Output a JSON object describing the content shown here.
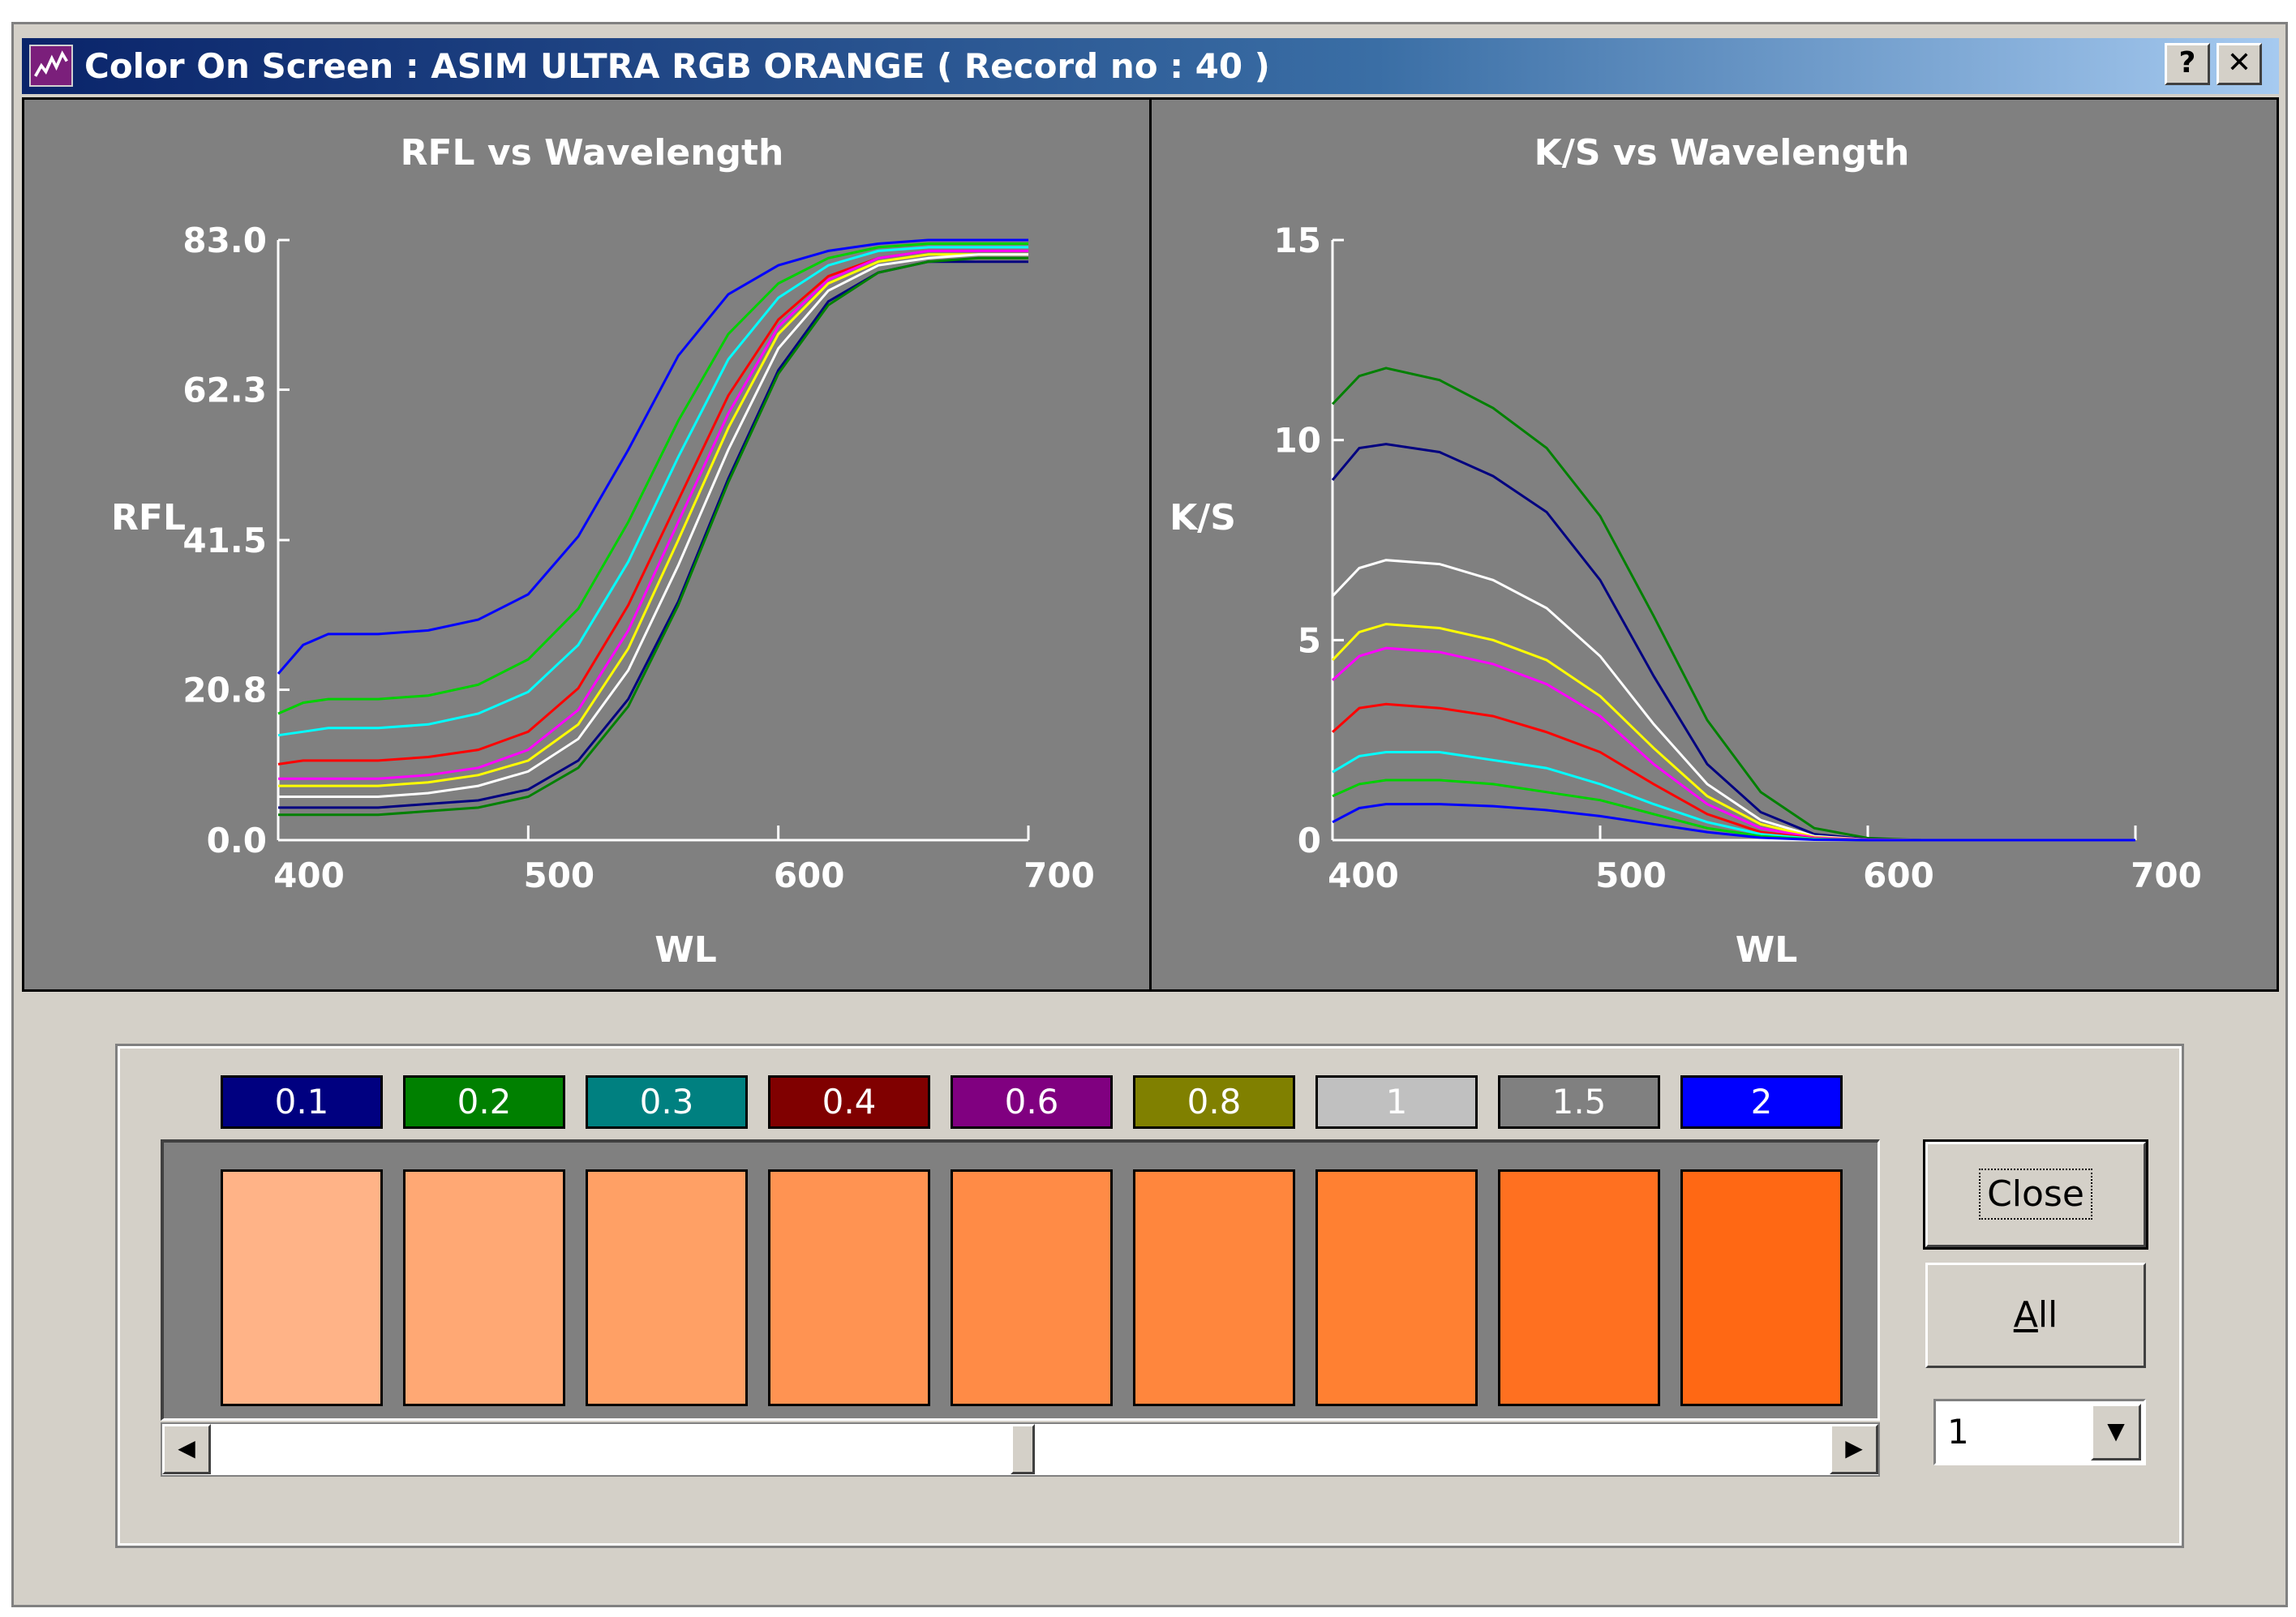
{
  "window": {
    "title": "Color On Screen : ASIM ULTRA RGB ORANGE ( Record no : 40 )",
    "help_label": "?",
    "close_label": "✕"
  },
  "colors": {
    "panel_bg": "#808080",
    "window_bg": "#d4d0c8",
    "axis": "#ffffff"
  },
  "chart_data": [
    {
      "type": "line",
      "title": "RFL vs Wavelength",
      "xlabel": "WL",
      "ylabel": "RFL",
      "xlim": [
        400,
        700
      ],
      "ylim": [
        0,
        83
      ],
      "x_ticks": [
        "400",
        "500",
        "600",
        "700"
      ],
      "y_ticks": [
        "0.0",
        "20.8",
        "41.5",
        "62.3",
        "83.0"
      ],
      "x": [
        400,
        410,
        420,
        440,
        460,
        480,
        500,
        520,
        540,
        560,
        580,
        600,
        620,
        640,
        660,
        680,
        700
      ],
      "series": [
        {
          "color": "#0000ff",
          "values": [
            23,
            27,
            28.5,
            28.5,
            29,
            30.5,
            34,
            42,
            54,
            67,
            75.5,
            79.5,
            81.5,
            82.5,
            83,
            83,
            83
          ]
        },
        {
          "color": "#00d000",
          "values": [
            17.5,
            19,
            19.5,
            19.5,
            20,
            21.5,
            25,
            32,
            44,
            58,
            70,
            77,
            80.5,
            82,
            82.5,
            82.5,
            82.5
          ]
        },
        {
          "color": "#00ffff",
          "values": [
            14.5,
            15,
            15.5,
            15.5,
            16,
            17.5,
            20.5,
            27,
            38.5,
            53,
            66.5,
            75,
            79.5,
            81.5,
            82,
            82,
            82
          ]
        },
        {
          "color": "#ff0000",
          "values": [
            10.5,
            11,
            11,
            11,
            11.5,
            12.5,
            15,
            21,
            32.5,
            47,
            61.5,
            72,
            78,
            80.5,
            81.5,
            81.5,
            81.5
          ]
        },
        {
          "color": "#ff00ff",
          "values": [
            8.5,
            8.5,
            8.5,
            8.5,
            9,
            10,
            12.5,
            18,
            29,
            44,
            59,
            71,
            77.5,
            80.5,
            81.5,
            81.5,
            81.5
          ]
        },
        {
          "color": "#ffff00",
          "values": [
            7.5,
            7.5,
            7.5,
            7.5,
            8,
            9,
            11,
            16,
            26.5,
            41.5,
            57,
            70,
            77,
            80,
            81,
            81,
            81
          ]
        },
        {
          "color": "#ffffff",
          "values": [
            6,
            6,
            6,
            6,
            6.5,
            7.5,
            9.5,
            14,
            23.5,
            38,
            54,
            68,
            76,
            79.5,
            80.5,
            81,
            81
          ]
        },
        {
          "color": "#000080",
          "values": [
            4.5,
            4.5,
            4.5,
            4.5,
            5,
            5.5,
            7,
            11,
            19.5,
            33,
            50,
            65,
            74.5,
            78.5,
            80,
            80,
            80
          ]
        },
        {
          "color": "#008000",
          "values": [
            3.5,
            3.5,
            3.5,
            3.5,
            4,
            4.5,
            6,
            10,
            18.5,
            32.5,
            49.5,
            64.5,
            74,
            78.5,
            80,
            80.5,
            80.5
          ]
        }
      ]
    },
    {
      "type": "line",
      "title": "K/S vs Wavelength",
      "xlabel": "WL",
      "ylabel": "K/S",
      "xlim": [
        400,
        700
      ],
      "ylim": [
        0,
        15
      ],
      "x_ticks": [
        "400",
        "500",
        "600",
        "700"
      ],
      "y_ticks": [
        "0",
        "5",
        "10",
        "15"
      ],
      "x": [
        400,
        410,
        420,
        440,
        460,
        480,
        500,
        520,
        540,
        560,
        580,
        600,
        620,
        640,
        660,
        680,
        700
      ],
      "series": [
        {
          "color": "#008000",
          "values": [
            10.9,
            11.6,
            11.8,
            11.5,
            10.8,
            9.8,
            8.1,
            5.6,
            3.0,
            1.2,
            0.3,
            0.05,
            0,
            0,
            0,
            0,
            0
          ]
        },
        {
          "color": "#000080",
          "values": [
            9.0,
            9.8,
            9.9,
            9.7,
            9.1,
            8.2,
            6.5,
            4.1,
            1.9,
            0.7,
            0.15,
            0.02,
            0,
            0,
            0,
            0,
            0
          ]
        },
        {
          "color": "#ffffff",
          "values": [
            6.1,
            6.8,
            7.0,
            6.9,
            6.5,
            5.8,
            4.6,
            2.9,
            1.4,
            0.5,
            0.1,
            0.01,
            0,
            0,
            0,
            0,
            0
          ]
        },
        {
          "color": "#ffff00",
          "values": [
            4.5,
            5.2,
            5.4,
            5.3,
            5.0,
            4.5,
            3.6,
            2.3,
            1.1,
            0.4,
            0.08,
            0.01,
            0,
            0,
            0,
            0,
            0
          ]
        },
        {
          "color": "#ff00ff",
          "values": [
            4.0,
            4.6,
            4.8,
            4.7,
            4.4,
            3.9,
            3.1,
            1.9,
            0.9,
            0.3,
            0.06,
            0.01,
            0,
            0,
            0,
            0,
            0
          ]
        },
        {
          "color": "#ff0000",
          "values": [
            2.7,
            3.3,
            3.4,
            3.3,
            3.1,
            2.7,
            2.2,
            1.4,
            0.65,
            0.2,
            0.04,
            0,
            0,
            0,
            0,
            0,
            0
          ]
        },
        {
          "color": "#00ffff",
          "values": [
            1.7,
            2.1,
            2.2,
            2.2,
            2.0,
            1.8,
            1.4,
            0.9,
            0.45,
            0.15,
            0.03,
            0,
            0,
            0,
            0,
            0,
            0
          ]
        },
        {
          "color": "#00d000",
          "values": [
            1.1,
            1.4,
            1.5,
            1.5,
            1.4,
            1.2,
            1.0,
            0.65,
            0.3,
            0.1,
            0.02,
            0,
            0,
            0,
            0,
            0,
            0
          ]
        },
        {
          "color": "#0000ff",
          "values": [
            0.45,
            0.8,
            0.9,
            0.9,
            0.85,
            0.75,
            0.6,
            0.4,
            0.2,
            0.06,
            0.01,
            0,
            0,
            0,
            0,
            0,
            0
          ]
        }
      ]
    }
  ],
  "concentrations": [
    {
      "label": "0.1",
      "bg": "#000080",
      "fg": "#ffffff"
    },
    {
      "label": "0.2",
      "bg": "#008000",
      "fg": "#ffffff"
    },
    {
      "label": "0.3",
      "bg": "#008080",
      "fg": "#ffffff"
    },
    {
      "label": "0.4",
      "bg": "#800000",
      "fg": "#ffffff"
    },
    {
      "label": "0.6",
      "bg": "#800080",
      "fg": "#ffffff"
    },
    {
      "label": "0.8",
      "bg": "#808000",
      "fg": "#ffffff"
    },
    {
      "label": "1",
      "bg": "#c0c0c0",
      "fg": "#ffffff"
    },
    {
      "label": "1.5",
      "bg": "#808080",
      "fg": "#ffffff"
    },
    {
      "label": "2",
      "bg": "#0000ff",
      "fg": "#ffffff"
    }
  ],
  "swatches": [
    "#ffb387",
    "#ffa874",
    "#ffa065",
    "#ff9352",
    "#ff8b46",
    "#ff863d",
    "#ff8032",
    "#ff7020",
    "#ff6814"
  ],
  "buttons": {
    "close_label": "Close",
    "all_label": "All",
    "all_mnemonic": "A",
    "all_rest": "ll"
  },
  "select": {
    "value": "1"
  },
  "scroll": {
    "position": 0.5
  }
}
